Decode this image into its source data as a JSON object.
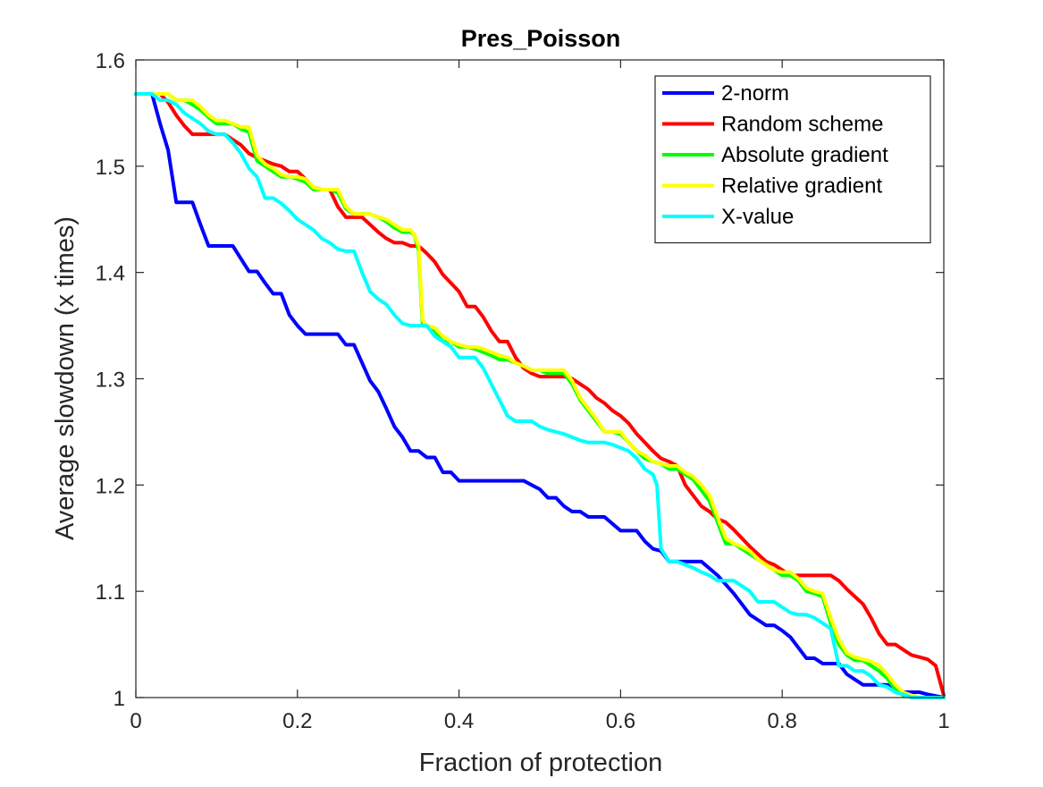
{
  "chart_data": {
    "type": "line",
    "title": "Pres_Poisson",
    "xlabel": "Fraction of protection",
    "ylabel": "Average slowdown (x times)",
    "xlim": [
      0,
      1
    ],
    "ylim": [
      1,
      1.6
    ],
    "xticks": [
      0,
      0.2,
      0.4,
      0.6,
      0.8,
      1
    ],
    "xtick_labels": [
      "0",
      "0.2",
      "0.4",
      "0.6",
      "0.8",
      "1"
    ],
    "yticks": [
      1,
      1.1,
      1.2,
      1.3,
      1.4,
      1.5,
      1.6
    ],
    "ytick_labels": [
      "1",
      "1.1",
      "1.2",
      "1.3",
      "1.4",
      "1.5",
      "1.6"
    ],
    "grid": false,
    "legend_position": "top-right",
    "series": [
      {
        "name": "2-norm",
        "color": "#0000ff",
        "x": [
          0,
          0.02,
          0.03,
          0.04,
          0.05,
          0.06,
          0.07,
          0.08,
          0.09,
          0.1,
          0.12,
          0.13,
          0.14,
          0.15,
          0.16,
          0.17,
          0.18,
          0.19,
          0.2,
          0.21,
          0.22,
          0.24,
          0.25,
          0.26,
          0.27,
          0.28,
          0.29,
          0.3,
          0.31,
          0.32,
          0.33,
          0.34,
          0.35,
          0.36,
          0.37,
          0.38,
          0.39,
          0.4,
          0.42,
          0.44,
          0.46,
          0.48,
          0.5,
          0.51,
          0.52,
          0.53,
          0.54,
          0.55,
          0.56,
          0.57,
          0.58,
          0.6,
          0.61,
          0.62,
          0.63,
          0.64,
          0.65,
          0.66,
          0.68,
          0.7,
          0.72,
          0.74,
          0.75,
          0.76,
          0.77,
          0.78,
          0.79,
          0.8,
          0.81,
          0.82,
          0.83,
          0.84,
          0.85,
          0.86,
          0.87,
          0.88,
          0.89,
          0.9,
          0.92,
          0.93,
          0.95,
          0.97,
          0.98,
          1.0
        ],
        "y": [
          1.568,
          1.568,
          1.54,
          1.515,
          1.466,
          1.466,
          1.466,
          1.445,
          1.425,
          1.425,
          1.425,
          1.413,
          1.401,
          1.401,
          1.39,
          1.38,
          1.38,
          1.36,
          1.35,
          1.342,
          1.342,
          1.342,
          1.342,
          1.332,
          1.332,
          1.315,
          1.298,
          1.288,
          1.272,
          1.255,
          1.245,
          1.232,
          1.232,
          1.226,
          1.226,
          1.212,
          1.212,
          1.204,
          1.204,
          1.204,
          1.204,
          1.204,
          1.196,
          1.188,
          1.188,
          1.18,
          1.175,
          1.175,
          1.17,
          1.17,
          1.17,
          1.157,
          1.157,
          1.157,
          1.147,
          1.14,
          1.138,
          1.128,
          1.128,
          1.128,
          1.115,
          1.098,
          1.088,
          1.078,
          1.073,
          1.068,
          1.068,
          1.063,
          1.057,
          1.047,
          1.037,
          1.037,
          1.032,
          1.032,
          1.032,
          1.022,
          1.017,
          1.012,
          1.012,
          1.012,
          1.005,
          1.005,
          1.003,
          1.0
        ]
      },
      {
        "name": "Random scheme",
        "color": "#ff0000",
        "x": [
          0,
          0.03,
          0.04,
          0.05,
          0.06,
          0.07,
          0.08,
          0.1,
          0.11,
          0.12,
          0.13,
          0.14,
          0.15,
          0.16,
          0.17,
          0.18,
          0.19,
          0.2,
          0.21,
          0.22,
          0.23,
          0.24,
          0.25,
          0.26,
          0.27,
          0.28,
          0.29,
          0.3,
          0.31,
          0.32,
          0.33,
          0.34,
          0.35,
          0.36,
          0.37,
          0.38,
          0.39,
          0.4,
          0.41,
          0.42,
          0.43,
          0.44,
          0.45,
          0.46,
          0.47,
          0.48,
          0.49,
          0.5,
          0.52,
          0.53,
          0.54,
          0.55,
          0.56,
          0.57,
          0.58,
          0.59,
          0.6,
          0.61,
          0.62,
          0.63,
          0.64,
          0.65,
          0.66,
          0.67,
          0.68,
          0.69,
          0.7,
          0.71,
          0.72,
          0.73,
          0.74,
          0.75,
          0.76,
          0.77,
          0.78,
          0.79,
          0.8,
          0.81,
          0.82,
          0.83,
          0.84,
          0.85,
          0.86,
          0.87,
          0.88,
          0.89,
          0.9,
          0.91,
          0.92,
          0.93,
          0.94,
          0.95,
          0.96,
          0.97,
          0.98,
          0.99,
          1.0
        ],
        "y": [
          1.568,
          1.568,
          1.56,
          1.548,
          1.538,
          1.53,
          1.53,
          1.53,
          1.53,
          1.525,
          1.52,
          1.512,
          1.508,
          1.505,
          1.502,
          1.5,
          1.495,
          1.495,
          1.488,
          1.48,
          1.478,
          1.478,
          1.462,
          1.452,
          1.452,
          1.452,
          1.445,
          1.438,
          1.432,
          1.428,
          1.428,
          1.425,
          1.425,
          1.418,
          1.41,
          1.398,
          1.39,
          1.382,
          1.368,
          1.368,
          1.358,
          1.345,
          1.335,
          1.335,
          1.32,
          1.31,
          1.305,
          1.302,
          1.302,
          1.302,
          1.3,
          1.295,
          1.29,
          1.282,
          1.277,
          1.27,
          1.265,
          1.258,
          1.248,
          1.24,
          1.232,
          1.225,
          1.222,
          1.218,
          1.2,
          1.19,
          1.18,
          1.175,
          1.168,
          1.165,
          1.158,
          1.15,
          1.142,
          1.135,
          1.128,
          1.125,
          1.12,
          1.115,
          1.115,
          1.115,
          1.115,
          1.115,
          1.115,
          1.11,
          1.102,
          1.095,
          1.088,
          1.075,
          1.06,
          1.05,
          1.05,
          1.045,
          1.04,
          1.038,
          1.036,
          1.03,
          1.002
        ]
      },
      {
        "name": "Absolute gradient",
        "color": "#00ff00",
        "x": [
          0,
          0.02,
          0.03,
          0.04,
          0.05,
          0.06,
          0.07,
          0.08,
          0.09,
          0.1,
          0.11,
          0.12,
          0.13,
          0.14,
          0.15,
          0.16,
          0.17,
          0.18,
          0.19,
          0.2,
          0.21,
          0.22,
          0.23,
          0.24,
          0.25,
          0.26,
          0.27,
          0.28,
          0.29,
          0.3,
          0.31,
          0.32,
          0.33,
          0.34,
          0.345,
          0.35,
          0.355,
          0.36,
          0.37,
          0.38,
          0.39,
          0.4,
          0.41,
          0.42,
          0.43,
          0.44,
          0.45,
          0.46,
          0.47,
          0.48,
          0.49,
          0.5,
          0.51,
          0.52,
          0.53,
          0.54,
          0.55,
          0.56,
          0.57,
          0.58,
          0.59,
          0.6,
          0.61,
          0.62,
          0.63,
          0.64,
          0.65,
          0.66,
          0.67,
          0.68,
          0.69,
          0.7,
          0.71,
          0.72,
          0.73,
          0.74,
          0.75,
          0.76,
          0.77,
          0.78,
          0.79,
          0.8,
          0.81,
          0.82,
          0.83,
          0.84,
          0.85,
          0.86,
          0.87,
          0.88,
          0.89,
          0.9,
          0.91,
          0.92,
          0.93,
          0.94,
          0.95,
          0.96,
          0.97,
          1.0
        ],
        "y": [
          1.568,
          1.568,
          1.568,
          1.568,
          1.562,
          1.562,
          1.558,
          1.553,
          1.546,
          1.54,
          1.54,
          1.54,
          1.535,
          1.532,
          1.505,
          1.5,
          1.495,
          1.49,
          1.49,
          1.488,
          1.485,
          1.478,
          1.478,
          1.478,
          1.475,
          1.46,
          1.455,
          1.455,
          1.455,
          1.452,
          1.448,
          1.442,
          1.438,
          1.438,
          1.435,
          1.42,
          1.35,
          1.35,
          1.345,
          1.335,
          1.335,
          1.33,
          1.33,
          1.328,
          1.325,
          1.322,
          1.318,
          1.318,
          1.315,
          1.312,
          1.308,
          1.308,
          1.305,
          1.305,
          1.305,
          1.295,
          1.28,
          1.27,
          1.26,
          1.25,
          1.25,
          1.248,
          1.24,
          1.232,
          1.225,
          1.222,
          1.22,
          1.215,
          1.215,
          1.21,
          1.205,
          1.195,
          1.185,
          1.165,
          1.145,
          1.145,
          1.14,
          1.135,
          1.13,
          1.125,
          1.12,
          1.115,
          1.115,
          1.11,
          1.1,
          1.098,
          1.095,
          1.07,
          1.05,
          1.04,
          1.035,
          1.035,
          1.03,
          1.025,
          1.018,
          1.008,
          1.002,
          1.002,
          1.0,
          1.0
        ]
      },
      {
        "name": "Relative gradient",
        "color": "#ffff00",
        "x": [
          0,
          0.02,
          0.03,
          0.04,
          0.05,
          0.06,
          0.07,
          0.08,
          0.09,
          0.1,
          0.11,
          0.12,
          0.13,
          0.14,
          0.15,
          0.16,
          0.17,
          0.18,
          0.19,
          0.2,
          0.21,
          0.22,
          0.23,
          0.24,
          0.25,
          0.26,
          0.27,
          0.28,
          0.29,
          0.3,
          0.31,
          0.32,
          0.33,
          0.34,
          0.345,
          0.35,
          0.355,
          0.36,
          0.37,
          0.38,
          0.39,
          0.4,
          0.41,
          0.42,
          0.43,
          0.44,
          0.45,
          0.46,
          0.47,
          0.48,
          0.49,
          0.5,
          0.51,
          0.52,
          0.53,
          0.54,
          0.55,
          0.56,
          0.57,
          0.58,
          0.59,
          0.6,
          0.61,
          0.62,
          0.63,
          0.64,
          0.65,
          0.66,
          0.67,
          0.68,
          0.69,
          0.7,
          0.71,
          0.72,
          0.73,
          0.74,
          0.75,
          0.76,
          0.77,
          0.78,
          0.79,
          0.8,
          0.81,
          0.82,
          0.83,
          0.84,
          0.85,
          0.86,
          0.87,
          0.88,
          0.89,
          0.9,
          0.91,
          0.92,
          0.93,
          0.94,
          0.95,
          0.96,
          0.97,
          1.0
        ],
        "y": [
          1.568,
          1.568,
          1.568,
          1.568,
          1.562,
          1.562,
          1.562,
          1.556,
          1.548,
          1.543,
          1.543,
          1.54,
          1.537,
          1.537,
          1.51,
          1.502,
          1.498,
          1.492,
          1.49,
          1.49,
          1.488,
          1.48,
          1.478,
          1.478,
          1.478,
          1.462,
          1.455,
          1.455,
          1.455,
          1.452,
          1.45,
          1.445,
          1.44,
          1.44,
          1.435,
          1.425,
          1.355,
          1.35,
          1.348,
          1.34,
          1.335,
          1.332,
          1.33,
          1.33,
          1.328,
          1.325,
          1.322,
          1.32,
          1.315,
          1.312,
          1.308,
          1.308,
          1.308,
          1.308,
          1.308,
          1.298,
          1.282,
          1.272,
          1.262,
          1.25,
          1.25,
          1.25,
          1.24,
          1.232,
          1.228,
          1.222,
          1.22,
          1.218,
          1.218,
          1.212,
          1.208,
          1.2,
          1.19,
          1.17,
          1.15,
          1.145,
          1.142,
          1.138,
          1.13,
          1.125,
          1.12,
          1.118,
          1.118,
          1.112,
          1.103,
          1.1,
          1.098,
          1.075,
          1.055,
          1.042,
          1.038,
          1.036,
          1.034,
          1.03,
          1.022,
          1.012,
          1.005,
          1.002,
          1.0,
          1.0
        ]
      },
      {
        "name": "X-value",
        "color": "#00ffff",
        "x": [
          0,
          0.02,
          0.03,
          0.04,
          0.05,
          0.06,
          0.07,
          0.08,
          0.09,
          0.1,
          0.11,
          0.12,
          0.13,
          0.14,
          0.15,
          0.16,
          0.17,
          0.18,
          0.19,
          0.2,
          0.21,
          0.22,
          0.23,
          0.24,
          0.25,
          0.26,
          0.27,
          0.28,
          0.29,
          0.3,
          0.31,
          0.32,
          0.33,
          0.34,
          0.35,
          0.36,
          0.37,
          0.38,
          0.39,
          0.4,
          0.41,
          0.42,
          0.43,
          0.44,
          0.45,
          0.46,
          0.47,
          0.48,
          0.49,
          0.5,
          0.51,
          0.52,
          0.53,
          0.54,
          0.55,
          0.56,
          0.57,
          0.58,
          0.59,
          0.6,
          0.61,
          0.62,
          0.63,
          0.64,
          0.645,
          0.65,
          0.66,
          0.67,
          0.68,
          0.69,
          0.7,
          0.71,
          0.72,
          0.73,
          0.74,
          0.75,
          0.76,
          0.77,
          0.78,
          0.79,
          0.8,
          0.81,
          0.82,
          0.83,
          0.84,
          0.85,
          0.86,
          0.87,
          0.88,
          0.89,
          0.9,
          0.91,
          0.92,
          0.93,
          0.94,
          0.95,
          0.96,
          0.97,
          1.0
        ],
        "y": [
          1.568,
          1.568,
          1.562,
          1.562,
          1.558,
          1.55,
          1.545,
          1.54,
          1.533,
          1.53,
          1.53,
          1.522,
          1.512,
          1.498,
          1.49,
          1.47,
          1.47,
          1.465,
          1.458,
          1.45,
          1.445,
          1.44,
          1.432,
          1.428,
          1.422,
          1.42,
          1.42,
          1.4,
          1.382,
          1.375,
          1.37,
          1.36,
          1.352,
          1.35,
          1.35,
          1.35,
          1.34,
          1.335,
          1.33,
          1.32,
          1.32,
          1.32,
          1.31,
          1.295,
          1.28,
          1.265,
          1.26,
          1.26,
          1.26,
          1.255,
          1.252,
          1.25,
          1.248,
          1.245,
          1.242,
          1.24,
          1.24,
          1.24,
          1.238,
          1.235,
          1.232,
          1.225,
          1.215,
          1.21,
          1.2,
          1.14,
          1.128,
          1.128,
          1.125,
          1.122,
          1.118,
          1.115,
          1.11,
          1.11,
          1.11,
          1.105,
          1.1,
          1.09,
          1.09,
          1.09,
          1.085,
          1.08,
          1.078,
          1.078,
          1.075,
          1.07,
          1.065,
          1.03,
          1.03,
          1.025,
          1.025,
          1.02,
          1.012,
          1.01,
          1.005,
          1.003,
          1.0,
          1.0,
          1.0
        ]
      }
    ]
  }
}
